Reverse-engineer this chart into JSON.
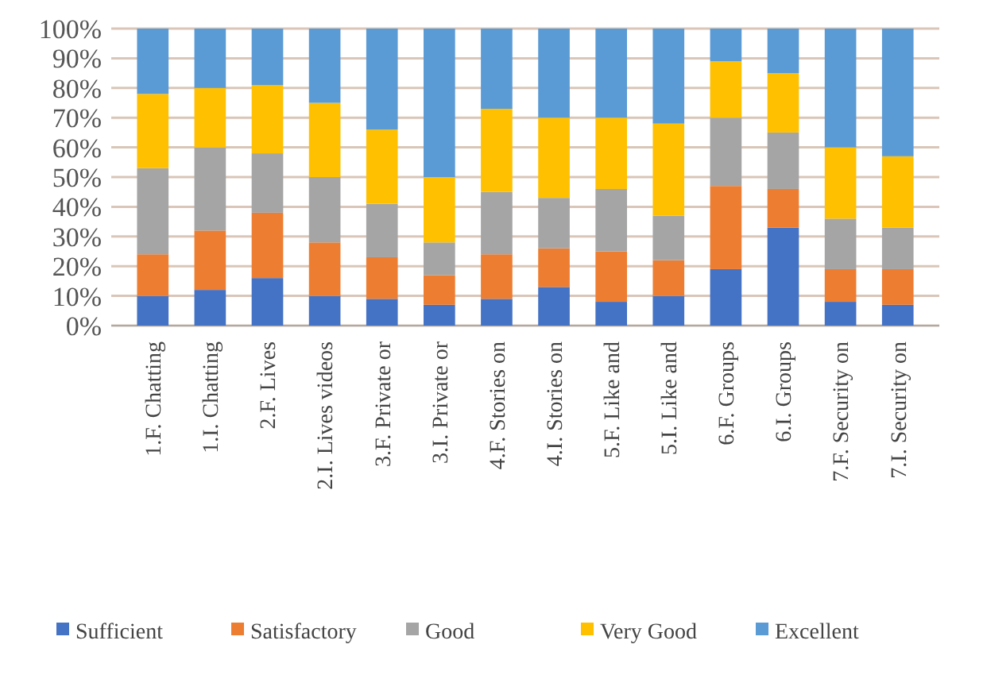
{
  "chart_data": {
    "type": "bar",
    "stacked": true,
    "categories": [
      "1.F. Chatting",
      "1.I. Chatting",
      "2.F. Lives",
      "2.I. Lives videos",
      "3.F. Private or",
      "3.I. Private or",
      "4.F. Stories on",
      "4.I. Stories on",
      "5.F. Like and",
      "5.I. Like and",
      "6.F. Groups",
      "6.I. Groups",
      "7.F. Security on",
      "7.I. Security on"
    ],
    "series": [
      {
        "name": "Sufficient",
        "color": "#4472c4",
        "values": [
          10,
          12,
          16,
          10,
          9,
          7,
          9,
          13,
          8,
          10,
          19,
          33,
          8,
          7
        ]
      },
      {
        "name": "Satisfactory",
        "color": "#ed7d31",
        "values": [
          14,
          20,
          22,
          18,
          14,
          10,
          15,
          13,
          17,
          12,
          28,
          13,
          11,
          12
        ]
      },
      {
        "name": "Good",
        "color": "#a5a5a5",
        "values": [
          29,
          28,
          20,
          22,
          18,
          11,
          21,
          17,
          21,
          15,
          23,
          19,
          17,
          14
        ]
      },
      {
        "name": "Very Good",
        "color": "#ffc000",
        "values": [
          25,
          20,
          23,
          25,
          25,
          22,
          28,
          27,
          24,
          31,
          19,
          20,
          24,
          24
        ]
      },
      {
        "name": "Excellent",
        "color": "#5b9bd5",
        "values": [
          22,
          20,
          19,
          25,
          34,
          50,
          27,
          30,
          30,
          32,
          11,
          15,
          40,
          43
        ]
      }
    ],
    "ylim": [
      0,
      100
    ],
    "yticks": [
      {
        "value": 0,
        "label": "0%"
      },
      {
        "value": 10,
        "label": "10%"
      },
      {
        "value": 20,
        "label": "20%"
      },
      {
        "value": 30,
        "label": "30%"
      },
      {
        "value": 40,
        "label": "40%"
      },
      {
        "value": 50,
        "label": "50%"
      },
      {
        "value": 60,
        "label": "60%"
      },
      {
        "value": 70,
        "label": "70%"
      },
      {
        "value": 80,
        "label": "80%"
      },
      {
        "value": 90,
        "label": "90%"
      },
      {
        "value": 100,
        "label": "100%"
      }
    ],
    "grid": "y",
    "legend": "bottom"
  }
}
